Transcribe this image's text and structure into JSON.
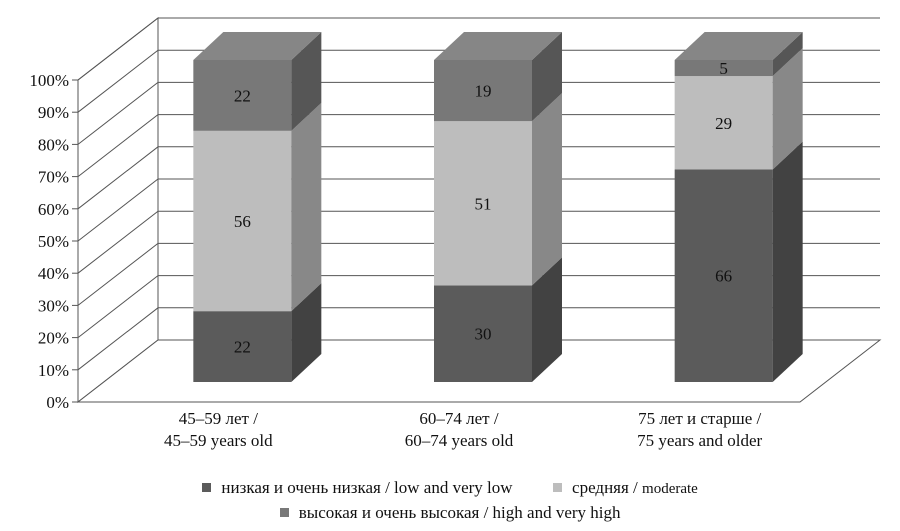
{
  "chart_data": {
    "type": "bar",
    "stacked": true,
    "three_d": true,
    "title": "",
    "xlabel": "",
    "ylabel": "",
    "ylim": [
      0,
      100
    ],
    "y_ticks": [
      "0%",
      "10%",
      "20%",
      "30%",
      "40%",
      "50%",
      "60%",
      "70%",
      "80%",
      "90%",
      "100%"
    ],
    "grid": true,
    "legend_placement": "bottom",
    "categories": [
      [
        "45–59 лет /",
        "45–59 years old"
      ],
      [
        "60–74 лет /",
        "60–74 years old"
      ],
      [
        "75 лет и старше /",
        "75 years and older"
      ]
    ],
    "series": [
      {
        "name": "низкая и очень низкая / low and very low",
        "values": [
          22,
          30,
          66
        ],
        "color": "#5b5b5b"
      },
      {
        "name": "средняя / moderate",
        "values": [
          56,
          51,
          29
        ],
        "color": "#bdbdbd"
      },
      {
        "name": "высокая и очень высокая / high and very high",
        "values": [
          22,
          19,
          5
        ],
        "color": "#787878"
      }
    ]
  },
  "legend": {
    "row1": [
      {
        "name": "низкая и очень низкая / low and very low",
        "color": "#5b5b5b"
      },
      {
        "name": "средняя /",
        "tail": "moderate",
        "color": "#bdbdbd"
      }
    ],
    "row2": [
      {
        "name": "высокая и очень высокая / high and very high",
        "color": "#787878"
      }
    ]
  }
}
